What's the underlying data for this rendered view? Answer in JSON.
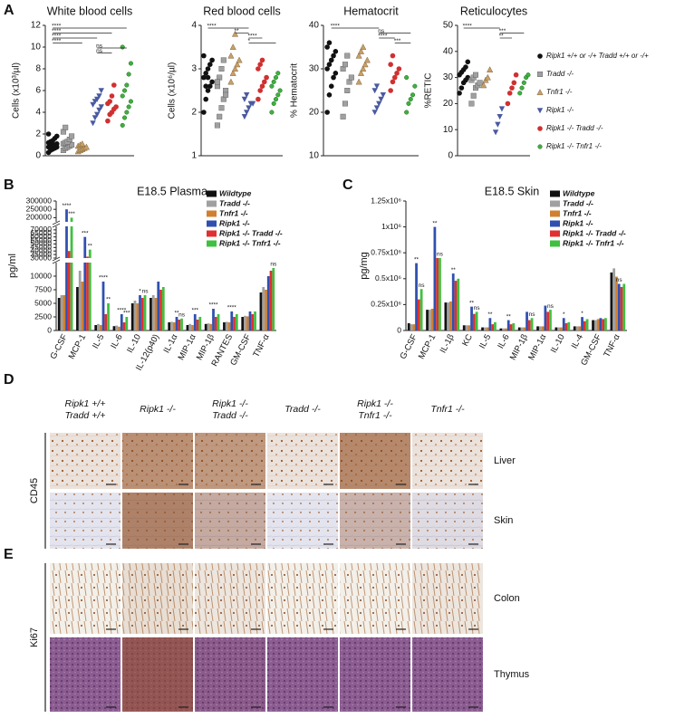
{
  "chart_data": [
    {
      "type": "dotplot",
      "title": "White blood cells",
      "ylabel": "Cells (x10³/µl)",
      "ylim": [
        0,
        12
      ],
      "yticks": [
        0,
        2,
        4,
        6,
        8,
        10,
        12
      ],
      "series": [
        {
          "color": "#111111",
          "marker": "circle",
          "values": [
            0.3,
            0.5,
            0.6,
            0.7,
            0.8,
            0.8,
            0.9,
            1.0,
            1.0,
            1.1,
            1.2,
            1.3,
            1.4,
            1.6,
            1.8,
            2.0
          ]
        },
        {
          "color": "#a0a0a0",
          "marker": "square",
          "values": [
            0.5,
            0.7,
            0.8,
            0.9,
            1.0,
            1.1,
            1.2,
            1.3,
            1.5,
            1.8,
            2.2,
            2.6
          ]
        },
        {
          "color": "#c8a064",
          "marker": "triangle",
          "values": [
            0.4,
            0.5,
            0.6,
            0.7,
            0.8,
            0.9,
            1.0,
            1.1
          ]
        },
        {
          "color": "#4a5aa0",
          "marker": "triangle-down",
          "values": [
            3.0,
            3.5,
            3.8,
            4.2,
            4.5,
            4.7,
            5.0,
            5.2,
            5.5,
            6.0
          ]
        },
        {
          "color": "#d03030",
          "marker": "circle",
          "values": [
            3.2,
            3.8,
            4.0,
            4.3,
            4.5,
            4.8,
            5.0,
            5.5,
            6.5
          ]
        },
        {
          "color": "#40b040",
          "marker": "open-circle",
          "values": [
            2.8,
            3.5,
            4.0,
            4.5,
            5.0,
            5.5,
            6.0,
            6.5,
            7.5,
            8.5,
            10.0
          ]
        }
      ],
      "annotations": [
        {
          "label": "****",
          "groups": [
            0,
            5
          ]
        },
        {
          "label": "****",
          "groups": [
            0,
            4
          ]
        },
        {
          "label": "****",
          "groups": [
            0,
            3
          ]
        },
        {
          "label": "****",
          "groups": [
            0,
            2
          ]
        },
        {
          "label": "ns",
          "groups": [
            3,
            5
          ]
        },
        {
          "label": "ns",
          "groups": [
            3,
            4
          ]
        }
      ]
    },
    {
      "type": "dotplot",
      "title": "Red blood cells",
      "ylabel": "Cells (x10⁶/µl)",
      "ylim": [
        1,
        4
      ],
      "yticks": [
        1,
        2,
        3,
        4
      ],
      "series": [
        {
          "color": "#111111",
          "marker": "circle",
          "values": [
            2.0,
            2.3,
            2.5,
            2.6,
            2.7,
            2.8,
            2.9,
            3.0,
            3.1,
            3.2,
            3.3,
            2.6,
            2.8
          ]
        },
        {
          "color": "#a0a0a0",
          "marker": "square",
          "values": [
            1.7,
            1.9,
            2.1,
            2.3,
            2.5,
            2.6,
            2.8,
            3.0,
            3.2,
            2.4,
            2.7
          ]
        },
        {
          "color": "#c8a064",
          "marker": "triangle",
          "values": [
            2.7,
            2.9,
            3.0,
            3.1,
            3.2,
            3.3,
            3.5,
            3.8
          ]
        },
        {
          "color": "#4a5aa0",
          "marker": "triangle-down",
          "values": [
            1.9,
            2.0,
            2.1,
            2.2,
            2.2,
            2.3,
            2.4
          ]
        },
        {
          "color": "#d03030",
          "marker": "circle",
          "values": [
            2.3,
            2.5,
            2.6,
            2.7,
            2.8,
            3.0,
            3.1,
            3.2
          ]
        },
        {
          "color": "#40b040",
          "marker": "open-circle",
          "values": [
            2.0,
            2.2,
            2.3,
            2.4,
            2.5,
            2.6,
            2.7,
            2.8,
            2.9
          ]
        }
      ],
      "annotations": [
        {
          "label": "****",
          "groups": [
            0,
            3
          ]
        },
        {
          "label": "**",
          "groups": [
            2,
            3
          ]
        },
        {
          "label": "****",
          "groups": [
            3,
            4
          ]
        },
        {
          "label": "*",
          "groups": [
            3,
            5
          ]
        }
      ]
    },
    {
      "type": "dotplot",
      "title": "Hematocrit",
      "ylabel": "% Hematocrit",
      "ylim": [
        10,
        40
      ],
      "yticks": [
        10,
        20,
        30,
        40
      ],
      "series": [
        {
          "color": "#111111",
          "marker": "circle",
          "values": [
            20,
            24,
            26,
            28,
            29,
            30,
            31,
            32,
            33,
            34,
            35,
            36
          ]
        },
        {
          "color": "#a0a0a0",
          "marker": "square",
          "values": [
            19,
            22,
            25,
            27,
            28,
            30,
            31,
            33
          ]
        },
        {
          "color": "#c8a064",
          "marker": "triangle",
          "values": [
            27,
            29,
            30,
            31,
            32,
            33,
            34,
            35
          ]
        },
        {
          "color": "#4a5aa0",
          "marker": "triangle-down",
          "values": [
            20,
            21,
            22,
            23,
            24,
            25,
            26
          ]
        },
        {
          "color": "#d03030",
          "marker": "circle",
          "values": [
            25,
            27,
            28,
            29,
            30,
            31,
            33
          ]
        },
        {
          "color": "#40b040",
          "marker": "open-circle",
          "values": [
            20,
            22,
            23,
            24,
            26,
            28
          ]
        }
      ],
      "annotations": [
        {
          "label": "****",
          "groups": [
            0,
            3
          ]
        },
        {
          "label": "ns",
          "groups": [
            3,
            5
          ]
        },
        {
          "label": "****",
          "groups": [
            3,
            4
          ]
        },
        {
          "label": "***",
          "groups": [
            4,
            5
          ]
        }
      ]
    },
    {
      "type": "dotplot",
      "title": "Reticulocytes",
      "ylabel": "%RETIC",
      "ylim": [
        0,
        50
      ],
      "yticks": [
        0,
        10,
        20,
        30,
        40,
        50
      ],
      "legend": "right",
      "series": [
        {
          "name": "Ripk1 +/+ or -/+ Tradd +/+ or -/+",
          "color": "#111111",
          "marker": "circle",
          "values": [
            24,
            26,
            28,
            29,
            30,
            31,
            32,
            33,
            34,
            36
          ]
        },
        {
          "name": "Tradd -/-",
          "color": "#a0a0a0",
          "marker": "square",
          "values": [
            20,
            23,
            26,
            27,
            28,
            29,
            30,
            31
          ]
        },
        {
          "name": "Tnfr1 -/-",
          "color": "#c8a064",
          "marker": "triangle",
          "values": [
            27,
            29,
            30,
            33
          ]
        },
        {
          "name": "Ripk1 -/-",
          "color": "#4a5aa0",
          "marker": "triangle-down",
          "values": [
            9,
            12,
            15,
            18
          ]
        },
        {
          "name": "Ripk1 -/- Tradd -/-",
          "color": "#d03030",
          "marker": "circle",
          "values": [
            20,
            24,
            26,
            28,
            31
          ]
        },
        {
          "name": "Ripk1 -/- Tnfr1 -/-",
          "color": "#40b040",
          "marker": "open-circle",
          "values": [
            24,
            26,
            28,
            30,
            31
          ]
        }
      ],
      "annotations": [
        {
          "label": "****",
          "groups": [
            0,
            3
          ]
        },
        {
          "label": "***",
          "groups": [
            3,
            5
          ]
        },
        {
          "label": "**",
          "groups": [
            3,
            4
          ]
        }
      ]
    },
    {
      "type": "bar",
      "title": "E18.5 Plasma",
      "ylabel": "pg/ml",
      "ysegments": [
        {
          "ylim": [
            0,
            12500
          ],
          "yticks": [
            0,
            2500,
            5000,
            7500,
            10000
          ]
        },
        {
          "ylim": [
            30000,
            75000
          ],
          "yticks": [
            30000,
            35000,
            40000,
            45000,
            50000,
            55000,
            60000,
            65000,
            70000
          ]
        },
        {
          "ylim": [
            175000,
            300000
          ],
          "yticks": [
            200000,
            250000,
            300000
          ]
        }
      ],
      "categories": [
        "G-CSF",
        "MCP-1",
        "IL-5",
        "IL-6",
        "IL-10",
        "IL-12(p40)",
        "IL-1α",
        "MIP-1α",
        "MIP-1β",
        "RANTES",
        "GM-CSF",
        "TNF-α"
      ],
      "series": [
        {
          "name": "Wildtype",
          "color": "#111111",
          "values": [
            6000,
            8000,
            1000,
            800,
            5000,
            6000,
            1500,
            1000,
            1200,
            1500,
            2500,
            7000
          ]
        },
        {
          "name": "Tradd -/-",
          "color": "#a0a0a0",
          "values": [
            6500,
            11000,
            1200,
            900,
            5500,
            6500,
            1600,
            1200,
            1300,
            1600,
            2700,
            8000
          ]
        },
        {
          "name": "Tnfr1 -/-",
          "color": "#d08030",
          "values": [
            6500,
            9000,
            1000,
            700,
            5000,
            6000,
            1500,
            1000,
            1200,
            1500,
            2600,
            7500
          ]
        },
        {
          "name": "Ripk1 -/-",
          "color": "#3050b0",
          "values": [
            250000,
            60000,
            9000,
            3000,
            6500,
            9000,
            2500,
            3000,
            4000,
            3500,
            3500,
            10000
          ]
        },
        {
          "name": "Ripk1 -/- Tradd -/-",
          "color": "#e03030",
          "values": [
            40000,
            32000,
            3000,
            1500,
            6000,
            7500,
            2000,
            2000,
            2500,
            2500,
            3000,
            11000
          ]
        },
        {
          "name": "Ripk1 -/- Tnfr1 -/-",
          "color": "#40c040",
          "values": [
            200000,
            42000,
            5000,
            2500,
            6500,
            8000,
            2200,
            2500,
            3000,
            3000,
            3500,
            11500
          ]
        }
      ],
      "annotations": [
        {
          "label": "****",
          "at": [
            0,
            3
          ]
        },
        {
          "label": "***",
          "at": [
            0,
            5
          ]
        },
        {
          "label": "***",
          "at": [
            1,
            3
          ]
        },
        {
          "label": "**",
          "at": [
            1,
            5
          ]
        },
        {
          "label": "****",
          "at": [
            2,
            3
          ]
        },
        {
          "label": "**",
          "at": [
            2,
            5
          ]
        },
        {
          "label": "****",
          "at": [
            3,
            3
          ]
        },
        {
          "label": "***",
          "at": [
            3,
            5
          ]
        },
        {
          "label": "*",
          "at": [
            4,
            3
          ]
        },
        {
          "label": "ns",
          "at": [
            4,
            5
          ]
        },
        {
          "label": "**",
          "at": [
            6,
            3
          ]
        },
        {
          "label": "ns",
          "at": [
            6,
            5
          ]
        },
        {
          "label": "***",
          "at": [
            7,
            3
          ]
        },
        {
          "label": "****",
          "at": [
            8,
            3
          ]
        },
        {
          "label": "****",
          "at": [
            9,
            3
          ]
        },
        {
          "label": "ns",
          "at": [
            11,
            5
          ]
        }
      ]
    },
    {
      "type": "bar",
      "title": "E18.5 Skin",
      "ylabel": "pg/mg",
      "ylim": [
        0,
        1250000
      ],
      "yticks": [
        0,
        {
          "value": 250000,
          "label": "0.25x10⁶"
        },
        {
          "value": 500000,
          "label": "0.5x10⁶"
        },
        {
          "value": 750000,
          "label": "0.75x10⁶"
        },
        {
          "value": 1000000,
          "label": "1x10⁶"
        },
        {
          "value": 1250000,
          "label": "1.25x10⁶"
        }
      ],
      "categories": [
        "G-CSF",
        "MCP-1",
        "IL-1β",
        "KC",
        "IL-5",
        "IL-6",
        "MIP-1β",
        "MIP-1α",
        "IL-10",
        "IL-4",
        "GM-CSF",
        "TNF-α"
      ],
      "series": [
        {
          "name": "Wildtype",
          "color": "#111111",
          "values": [
            70000,
            200000,
            270000,
            50000,
            30000,
            20000,
            30000,
            40000,
            30000,
            40000,
            100000,
            560000
          ]
        },
        {
          "name": "Tradd -/-",
          "color": "#a0a0a0",
          "values": [
            60000,
            200000,
            270000,
            50000,
            30000,
            20000,
            30000,
            40000,
            30000,
            40000,
            100000,
            600000
          ]
        },
        {
          "name": "Tnfr1 -/-",
          "color": "#d08030",
          "values": [
            60000,
            210000,
            280000,
            50000,
            30000,
            20000,
            30000,
            40000,
            30000,
            40000,
            110000,
            520000
          ]
        },
        {
          "name": "Ripk1 -/-",
          "color": "#3050b0",
          "values": [
            650000,
            1000000,
            550000,
            230000,
            120000,
            100000,
            180000,
            240000,
            120000,
            130000,
            120000,
            450000
          ]
        },
        {
          "name": "Ripk1 -/- Tradd -/-",
          "color": "#e03030",
          "values": [
            300000,
            700000,
            480000,
            160000,
            60000,
            60000,
            100000,
            180000,
            70000,
            90000,
            110000,
            420000
          ]
        },
        {
          "name": "Ripk1 -/- Tnfr1 -/-",
          "color": "#40c040",
          "values": [
            400000,
            700000,
            500000,
            180000,
            80000,
            70000,
            120000,
            200000,
            80000,
            110000,
            120000,
            450000
          ]
        }
      ],
      "annotations": [
        {
          "label": "**",
          "at": [
            0,
            3
          ]
        },
        {
          "label": "ns",
          "at": [
            0,
            5
          ]
        },
        {
          "label": "**",
          "at": [
            1,
            3
          ]
        },
        {
          "label": "ns",
          "at": [
            1,
            5
          ]
        },
        {
          "label": "**",
          "at": [
            2,
            3
          ]
        },
        {
          "label": "**",
          "at": [
            3,
            3
          ]
        },
        {
          "label": "ns",
          "at": [
            3,
            5
          ]
        },
        {
          "label": "**",
          "at": [
            4,
            3
          ]
        },
        {
          "label": "**",
          "at": [
            5,
            3
          ]
        },
        {
          "label": "ns",
          "at": [
            6,
            5
          ]
        },
        {
          "label": "ns",
          "at": [
            7,
            5
          ]
        },
        {
          "label": "*",
          "at": [
            8,
            3
          ]
        },
        {
          "label": "*",
          "at": [
            9,
            3
          ]
        },
        {
          "label": "ns",
          "at": [
            11,
            3
          ]
        }
      ]
    }
  ],
  "panel_labels": [
    "A",
    "B",
    "C",
    "D",
    "E"
  ],
  "histology": {
    "columns": [
      [
        "Ripk1 +/+",
        "Tradd +/+"
      ],
      [
        "Ripk1 -/-"
      ],
      [
        "Ripk1 -/-",
        "Tradd -/-"
      ],
      [
        "Tradd -/-"
      ],
      [
        "Ripk1 -/-",
        "Tnfr1 -/-"
      ],
      [
        "Tnfr1 -/-"
      ]
    ],
    "D": {
      "stain": "CD45",
      "rows": [
        "Liver",
        "Skin"
      ]
    },
    "E": {
      "stain": "Ki67",
      "rows": [
        "Colon",
        "Thymus"
      ]
    }
  }
}
